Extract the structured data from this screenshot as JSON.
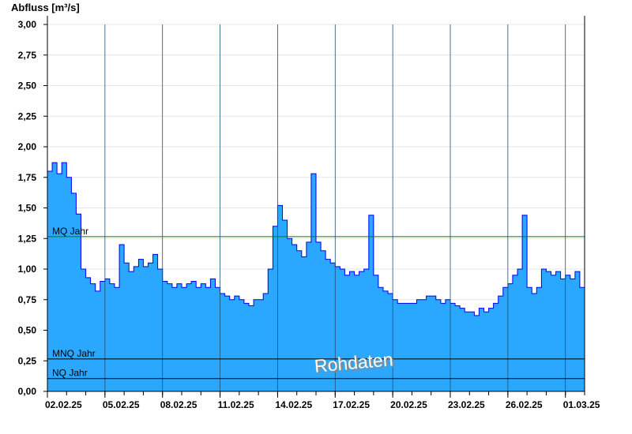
{
  "chart_data": {
    "type": "area",
    "title": "",
    "ylabel": "Abfluss [m³/s]",
    "xlabel": "",
    "ylim": [
      0,
      3.0
    ],
    "xlim": [
      "2025-02-02T00:00",
      "2025-03-02T00:00"
    ],
    "yticks": [
      "0,00",
      "0,25",
      "0,50",
      "0,75",
      "1,00",
      "1,25",
      "1,50",
      "1,75",
      "2,00",
      "2,25",
      "2,50",
      "2,75",
      "3,00"
    ],
    "xticks": [
      {
        "date": "2025-02-02",
        "label": "02.02.25"
      },
      {
        "date": "2025-02-05",
        "label": "05.02.25"
      },
      {
        "date": "2025-02-08",
        "label": "08.02.25"
      },
      {
        "date": "2025-02-11",
        "label": "11.02.25"
      },
      {
        "date": "2025-02-14",
        "label": "14.02.25"
      },
      {
        "date": "2025-02-17",
        "label": "17.02.25"
      },
      {
        "date": "2025-02-20",
        "label": "20.02.25"
      },
      {
        "date": "2025-02-23",
        "label": "23.02.25"
      },
      {
        "date": "2025-02-26",
        "label": "26.02.25"
      },
      {
        "date": "2025-03-01",
        "label": "01.03.25"
      }
    ],
    "grid": {
      "horizontal": true,
      "vertical_major": true
    },
    "colors": {
      "fill": "#2aa8ff",
      "line": "#0000ee",
      "mq": "#008000",
      "mnq": "#000000",
      "nq": "#000000"
    },
    "reference_lines": [
      {
        "label": "MQ Jahr",
        "value": 1.265
      },
      {
        "label": "MNQ Jahr",
        "value": 0.265
      },
      {
        "label": "NQ Jahr",
        "value": 0.105
      }
    ],
    "watermark": "Rohdaten",
    "series_hours": [
      0,
      6,
      12,
      18
    ],
    "series": [
      {
        "date": "2025-02-02",
        "values": [
          1.8,
          1.87,
          1.78,
          1.87
        ]
      },
      {
        "date": "2025-02-03",
        "values": [
          1.75,
          1.62,
          1.45,
          1.0
        ]
      },
      {
        "date": "2025-02-04",
        "values": [
          0.93,
          0.88,
          0.82,
          0.9
        ]
      },
      {
        "date": "2025-02-05",
        "values": [
          0.92,
          0.88,
          0.85,
          1.2
        ]
      },
      {
        "date": "2025-02-06",
        "values": [
          1.05,
          0.98,
          1.02,
          1.08
        ]
      },
      {
        "date": "2025-02-07",
        "values": [
          1.02,
          1.05,
          1.12,
          1.0
        ]
      },
      {
        "date": "2025-02-08",
        "values": [
          0.9,
          0.88,
          0.85,
          0.88
        ]
      },
      {
        "date": "2025-02-09",
        "values": [
          0.85,
          0.88,
          0.9,
          0.85
        ]
      },
      {
        "date": "2025-02-10",
        "values": [
          0.88,
          0.85,
          0.92,
          0.85
        ]
      },
      {
        "date": "2025-02-11",
        "values": [
          0.8,
          0.78,
          0.75,
          0.78
        ]
      },
      {
        "date": "2025-02-12",
        "values": [
          0.75,
          0.72,
          0.7,
          0.75
        ]
      },
      {
        "date": "2025-02-13",
        "values": [
          0.75,
          0.8,
          1.0,
          1.35
        ]
      },
      {
        "date": "2025-02-14",
        "values": [
          1.52,
          1.4,
          1.25,
          1.2
        ]
      },
      {
        "date": "2025-02-15",
        "values": [
          1.15,
          1.1,
          1.22,
          1.78
        ]
      },
      {
        "date": "2025-02-16",
        "values": [
          1.22,
          1.15,
          1.08,
          1.05
        ]
      },
      {
        "date": "2025-02-17",
        "values": [
          1.02,
          1.0,
          0.95,
          0.98
        ]
      },
      {
        "date": "2025-02-18",
        "values": [
          0.95,
          0.98,
          1.0,
          1.44
        ]
      },
      {
        "date": "2025-02-19",
        "values": [
          0.95,
          0.85,
          0.82,
          0.8
        ]
      },
      {
        "date": "2025-02-20",
        "values": [
          0.75,
          0.72,
          0.72,
          0.72
        ]
      },
      {
        "date": "2025-02-21",
        "values": [
          0.72,
          0.75,
          0.75,
          0.78
        ]
      },
      {
        "date": "2025-02-22",
        "values": [
          0.78,
          0.75,
          0.72,
          0.75
        ]
      },
      {
        "date": "2025-02-23",
        "values": [
          0.72,
          0.7,
          0.68,
          0.65
        ]
      },
      {
        "date": "2025-02-24",
        "values": [
          0.65,
          0.62,
          0.68,
          0.65
        ]
      },
      {
        "date": "2025-02-25",
        "values": [
          0.68,
          0.72,
          0.78,
          0.85
        ]
      },
      {
        "date": "2025-02-26",
        "values": [
          0.88,
          0.95,
          1.0,
          1.44
        ]
      },
      {
        "date": "2025-02-27",
        "values": [
          0.85,
          0.8,
          0.85,
          1.0
        ]
      },
      {
        "date": "2025-02-28",
        "values": [
          0.98,
          0.95,
          0.98,
          0.92
        ]
      },
      {
        "date": "2025-03-01",
        "values": [
          0.95,
          0.92,
          0.98,
          0.85
        ]
      }
    ]
  }
}
